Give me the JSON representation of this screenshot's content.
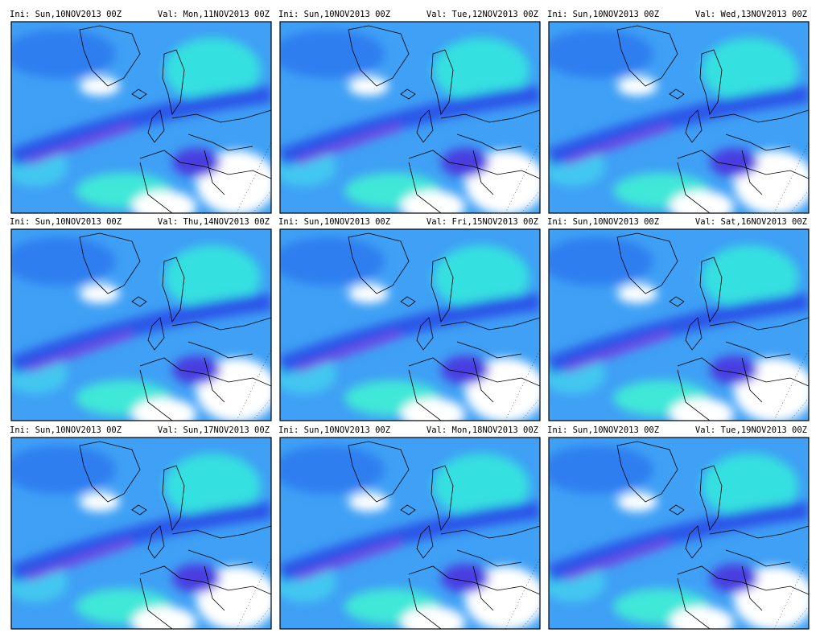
{
  "panels": [
    {
      "ini": "Ini: Sun,10NOV2013 00Z",
      "val": "Val: Mon,11NOV2013 00Z"
    },
    {
      "ini": "Ini: Sun,10NOV2013 00Z",
      "val": "Val: Tue,12NOV2013 00Z"
    },
    {
      "ini": "Ini: Sun,10NOV2013 00Z",
      "val": "Val: Wed,13NOV2013 00Z"
    },
    {
      "ini": "Ini: Sun,10NOV2013 00Z",
      "val": "Val: Thu,14NOV2013 00Z"
    },
    {
      "ini": "Ini: Sun,10NOV2013 00Z",
      "val": "Val: Fri,15NOV2013 00Z"
    },
    {
      "ini": "Ini: Sun,10NOV2013 00Z",
      "val": "Val: Sat,16NOV2013 00Z"
    },
    {
      "ini": "Ini: Sun,10NOV2013 00Z",
      "val": "Val: Sun,17NOV2013 00Z"
    },
    {
      "ini": "Ini: Sun,10NOV2013 00Z",
      "val": "Val: Mon,18NOV2013 00Z"
    },
    {
      "ini": "Ini: Sun,10NOV2013 00Z",
      "val": "Val: Tue,19NOV2013 00Z"
    }
  ]
}
